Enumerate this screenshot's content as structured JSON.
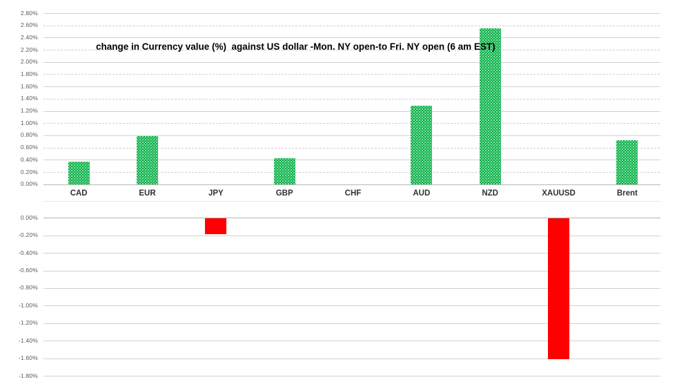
{
  "chart_data": {
    "type": "bar",
    "title": "change in Currency value (%)  against US dollar -Mon. NY open-to Fri. NY open (6 am EST)",
    "categories": [
      "CAD",
      "EUR",
      "JPY",
      "GBP",
      "CHF",
      "AUD",
      "NZD",
      "XAUUSD",
      "Brent"
    ],
    "values": [
      0.37,
      0.79,
      -0.18,
      0.43,
      0.0,
      1.29,
      2.55,
      -1.6,
      0.72
    ],
    "unit": "%",
    "legend": false,
    "grid": true,
    "layout": "split-panels: positive panel above category labels, negative panel below",
    "top_axis": {
      "range": [
        0.0,
        2.8
      ],
      "tick_values": [
        2.8,
        2.6,
        2.4,
        2.2,
        2.0,
        1.8,
        1.6,
        1.4,
        1.2,
        1.0,
        0.8,
        0.6,
        0.4,
        0.2,
        0.0
      ],
      "tick_labels": [
        "2.80%",
        "2.60%",
        "2.40%",
        "2.20%",
        "2.00%",
        "1.80%",
        "1.60%",
        "1.40%",
        "1.20%",
        "1.00%",
        "0.80%",
        "0.60%",
        "0.40%",
        "0.20%",
        "0.00%"
      ]
    },
    "bottom_axis": {
      "range": [
        0.0,
        -1.8
      ],
      "tick_values": [
        0.0,
        -0.2,
        -0.4,
        -0.6,
        -0.8,
        -1.0,
        -1.2,
        -1.4,
        -1.6,
        -1.8
      ],
      "tick_labels": [
        "0.00%",
        "-0.20%",
        "-0.40%",
        "-0.60%",
        "-0.80%",
        "-1.00%",
        "-1.20%",
        "-1.40%",
        "-1.60%",
        "-1.80%"
      ]
    },
    "colors": {
      "positive_bar": "#0FAE4D",
      "negative_bar": "#FF0000",
      "gridline_solid": "#CDD3CD",
      "gridline_dashed": "#D9C8D4",
      "zero_axis_line": "#B3B8B3",
      "tick_text": "#595959",
      "category_text": "#303030",
      "title_text": "#000000",
      "background": "#FFFFFF"
    }
  }
}
